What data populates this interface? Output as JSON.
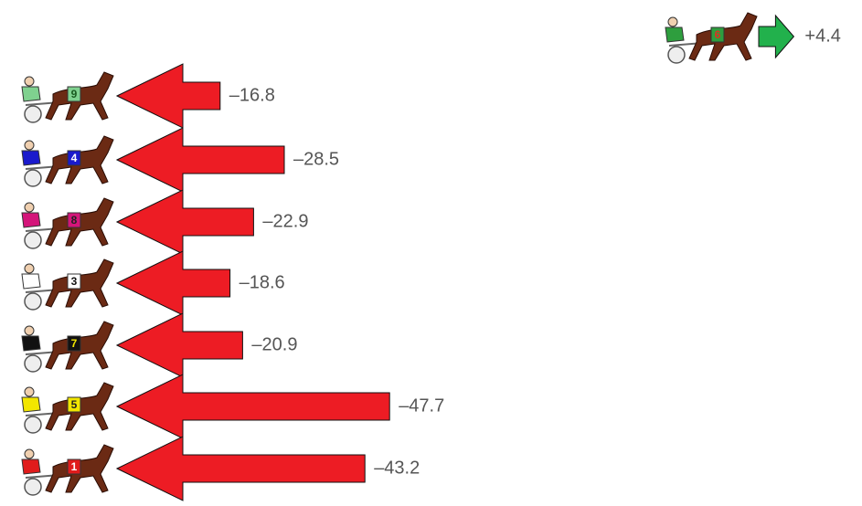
{
  "chart_data": {
    "type": "arrow",
    "categories": [
      "6",
      "9",
      "4",
      "8",
      "3",
      "7",
      "5",
      "1"
    ],
    "values": [
      4.4,
      -16.8,
      -28.5,
      -22.9,
      -18.6,
      -20.9,
      -47.7,
      -43.2
    ],
    "value_labels": [
      "+4.4",
      "–16.8",
      "–28.5",
      "–22.9",
      "–18.6",
      "–20.9",
      "–47.7",
      "–43.2"
    ],
    "cloth_colors": [
      "#2e9e3e",
      "#7fd18f",
      "#1a1acc",
      "#d4157a",
      "#ffffff",
      "#111111",
      "#f2e600",
      "#e01b1b"
    ],
    "number_colors": [
      "#e03020",
      "#1a5a20",
      "#ffffff",
      "#222222",
      "#111111",
      "#f2e600",
      "#222222",
      "#ffffff"
    ],
    "positive_color": "#22b14c",
    "negative_color": "#ed1c24"
  }
}
